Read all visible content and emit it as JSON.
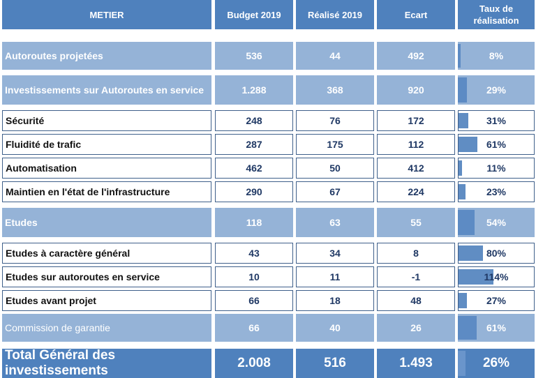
{
  "header": {
    "metier": "METIER",
    "budget": "Budget 2019",
    "realise": "Réalisé 2019",
    "ecart": "Ecart",
    "taux": "Taux de réalisation"
  },
  "colors": {
    "header": "#4f81bd",
    "light_row": "#95b3d7",
    "bar": "#4f81bd"
  },
  "chart_data": {
    "type": "table",
    "columns": [
      "METIER",
      "Budget 2019",
      "Réalisé 2019",
      "Ecart",
      "Taux de réalisation"
    ],
    "rows": [
      {
        "label": "Autoroutes projetées",
        "budget": "536",
        "realise": "44",
        "ecart": "492",
        "taux": "8%",
        "taux_value": 8,
        "style": "light"
      },
      {
        "label": "Investissements sur Autoroutes en service",
        "budget": "1.288",
        "realise": "368",
        "ecart": "920",
        "taux": "29%",
        "taux_value": 29,
        "style": "light"
      },
      {
        "label": "Sécurité",
        "budget": "248",
        "realise": "76",
        "ecart": "172",
        "taux": "31%",
        "taux_value": 31,
        "style": "white"
      },
      {
        "label": "Fluidité de trafic",
        "budget": "287",
        "realise": "175",
        "ecart": "112",
        "taux": "61%",
        "taux_value": 61,
        "style": "white"
      },
      {
        "label": "Automatisation",
        "budget": "462",
        "realise": "50",
        "ecart": "412",
        "taux": "11%",
        "taux_value": 11,
        "style": "white"
      },
      {
        "label": "Maintien en l'état de l'infrastructure",
        "budget": "290",
        "realise": "67",
        "ecart": "224",
        "taux": "23%",
        "taux_value": 23,
        "style": "white"
      },
      {
        "label": "Etudes",
        "budget": "118",
        "realise": "63",
        "ecart": "55",
        "taux": "54%",
        "taux_value": 54,
        "style": "light"
      },
      {
        "label": "Etudes à caractère général",
        "budget": "43",
        "realise": "34",
        "ecart": "8",
        "taux": "80%",
        "taux_value": 80,
        "style": "white"
      },
      {
        "label": "Etudes sur autoroutes en service",
        "budget": "10",
        "realise": "11",
        "ecart": "-1",
        "taux": "114%",
        "taux_value": 114,
        "style": "white"
      },
      {
        "label": "Etudes avant projet",
        "budget": "66",
        "realise": "18",
        "ecart": "48",
        "taux": "27%",
        "taux_value": 27,
        "style": "white"
      },
      {
        "label": "Commission de garantie",
        "budget": "66",
        "realise": "40",
        "ecart": "26",
        "taux": "61%",
        "taux_value": 61,
        "style": "light normal"
      },
      {
        "label": "Total Général des investissements",
        "budget": "2.008",
        "realise": "516",
        "ecart": "1.493",
        "taux": "26%",
        "taux_value": 26,
        "style": "total"
      }
    ]
  }
}
